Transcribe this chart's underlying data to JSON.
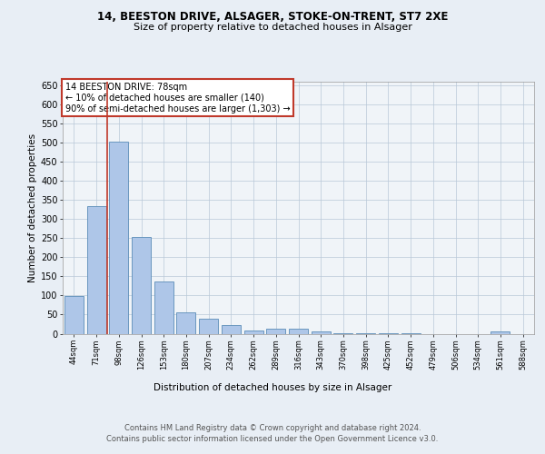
{
  "title1": "14, BEESTON DRIVE, ALSAGER, STOKE-ON-TRENT, ST7 2XE",
  "title2": "Size of property relative to detached houses in Alsager",
  "xlabel": "Distribution of detached houses by size in Alsager",
  "ylabel": "Number of detached properties",
  "bar_labels": [
    "44sqm",
    "71sqm",
    "98sqm",
    "126sqm",
    "153sqm",
    "180sqm",
    "207sqm",
    "234sqm",
    "262sqm",
    "289sqm",
    "316sqm",
    "343sqm",
    "370sqm",
    "398sqm",
    "425sqm",
    "452sqm",
    "479sqm",
    "506sqm",
    "534sqm",
    "561sqm",
    "588sqm"
  ],
  "bar_values": [
    98,
    335,
    502,
    254,
    137,
    55,
    40,
    22,
    9,
    12,
    12,
    6,
    2,
    1,
    1,
    1,
    0,
    0,
    0,
    5,
    0
  ],
  "bar_color": "#aec6e8",
  "bar_edge_color": "#5b8db8",
  "vline_x": 1.5,
  "vline_color": "#c0392b",
  "annotation_title": "14 BEESTON DRIVE: 78sqm",
  "annotation_line1": "← 10% of detached houses are smaller (140)",
  "annotation_line2": "90% of semi-detached houses are larger (1,303) →",
  "annotation_box_color": "#c0392b",
  "ylim": [
    0,
    660
  ],
  "yticks": [
    0,
    50,
    100,
    150,
    200,
    250,
    300,
    350,
    400,
    450,
    500,
    550,
    600,
    650
  ],
  "footer1": "Contains HM Land Registry data © Crown copyright and database right 2024.",
  "footer2": "Contains public sector information licensed under the Open Government Licence v3.0.",
  "bg_color": "#e8eef5",
  "plot_bg_color": "#f0f4f8"
}
